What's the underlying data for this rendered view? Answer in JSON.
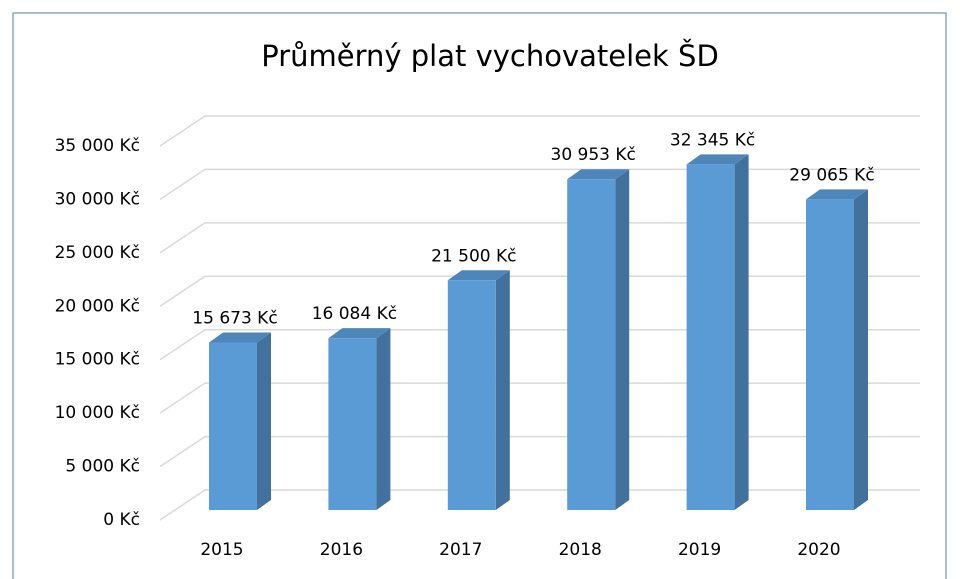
{
  "chart_data": {
    "type": "bar",
    "title": "Průměrný plat vychovatelek ŠD",
    "categories": [
      "2015",
      "2016",
      "2017",
      "2018",
      "2019",
      "2020"
    ],
    "values": [
      15673,
      16084,
      21500,
      30953,
      32345,
      29065
    ],
    "value_labels": [
      "15 673 Kč",
      "16 084 Kč",
      "21 500 Kč",
      "30 953 Kč",
      "32 345 Kč",
      "29 065 Kč"
    ],
    "color": "#5b9bd5",
    "ylim": [
      0,
      35000
    ],
    "yticks": [
      {
        "value": 0,
        "label": "0 Kč"
      },
      {
        "value": 5000,
        "label": "5 000 Kč"
      },
      {
        "value": 10000,
        "label": "10 000 Kč"
      },
      {
        "value": 15000,
        "label": "15 000 Kč"
      },
      {
        "value": 20000,
        "label": "20 000 Kč"
      },
      {
        "value": 25000,
        "label": "25 000 Kč"
      },
      {
        "value": 30000,
        "label": "30 000 Kč"
      },
      {
        "value": 35000,
        "label": "35 000 Kč"
      }
    ],
    "grid": true
  }
}
